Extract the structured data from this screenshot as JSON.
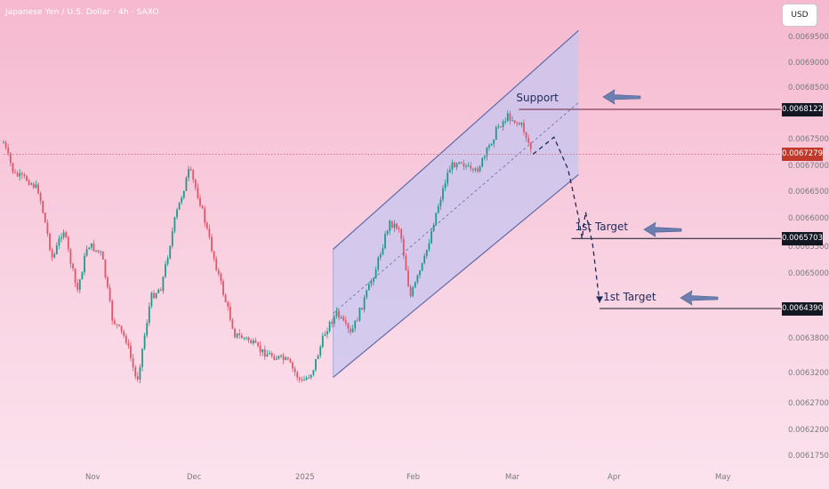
{
  "header": {
    "title": "Japanese Yen / U.S. Dollar · 4h · SAXO",
    "currency_button": "USD"
  },
  "chart_data": {
    "type": "candlestick",
    "title": "Japanese Yen / U.S. Dollar · 4h · SAXO",
    "y_ticks": [
      "0.0069500",
      "0.0069000",
      "0.0068500",
      "0.0067500",
      "0.0067000",
      "0.0066500",
      "0.0066000",
      "0.0065500",
      "0.0065000",
      "0.0063800",
      "0.0063200",
      "0.0062700",
      "0.0062200",
      "0.0061750"
    ],
    "x_ticks": [
      "Nov",
      "Dec",
      "2025",
      "Feb",
      "Mar",
      "Apr",
      "May"
    ],
    "close_path": [
      {
        "x": "Oct 14",
        "y": 0.00675
      },
      {
        "x": "Oct 17",
        "y": 0.00669
      },
      {
        "x": "Oct 21",
        "y": 0.00668
      },
      {
        "x": "Oct 24",
        "y": 0.00666
      },
      {
        "x": "Oct 28",
        "y": 0.00653
      },
      {
        "x": "Oct 31",
        "y": 0.00659
      },
      {
        "x": "Nov 4",
        "y": 0.00647
      },
      {
        "x": "Nov 7",
        "y": 0.00656
      },
      {
        "x": "Nov 11",
        "y": 0.00654
      },
      {
        "x": "Nov 14",
        "y": 0.00642
      },
      {
        "x": "Nov 18",
        "y": 0.00638
      },
      {
        "x": "Nov 21",
        "y": 0.0063
      },
      {
        "x": "Nov 25",
        "y": 0.00646
      },
      {
        "x": "Nov 28",
        "y": 0.00648
      },
      {
        "x": "Dec 2",
        "y": 0.00661
      },
      {
        "x": "Dec 6",
        "y": 0.0067
      },
      {
        "x": "Dec 9",
        "y": 0.00664
      },
      {
        "x": "Dec 12",
        "y": 0.00656
      },
      {
        "x": "Dec 16",
        "y": 0.00646
      },
      {
        "x": "Dec 19",
        "y": 0.00639
      },
      {
        "x": "Dec 23",
        "y": 0.00638
      },
      {
        "x": "Dec 26",
        "y": 0.00636
      },
      {
        "x": "Dec 30",
        "y": 0.00635
      },
      {
        "x": "Jan 3",
        "y": 0.00634
      },
      {
        "x": "Jan 7",
        "y": 0.0063
      },
      {
        "x": "Jan 10",
        "y": 0.00632
      },
      {
        "x": "Jan 14",
        "y": 0.0064
      },
      {
        "x": "Jan 17",
        "y": 0.00643
      },
      {
        "x": "Jan 21",
        "y": 0.00639
      },
      {
        "x": "Jan 24",
        "y": 0.00644
      },
      {
        "x": "Jan 28",
        "y": 0.00651
      },
      {
        "x": "Feb 1",
        "y": 0.0066
      },
      {
        "x": "Feb 4",
        "y": 0.00659
      },
      {
        "x": "Feb 7",
        "y": 0.00646
      },
      {
        "x": "Feb 11",
        "y": 0.00653
      },
      {
        "x": "Feb 14",
        "y": 0.00661
      },
      {
        "x": "Feb 18",
        "y": 0.0067
      },
      {
        "x": "Feb 21",
        "y": 0.00672
      },
      {
        "x": "Feb 25",
        "y": 0.00669
      },
      {
        "x": "Feb 28",
        "y": 0.00672
      },
      {
        "x": "Mar 4",
        "y": 0.00678
      },
      {
        "x": "Mar 7",
        "y": 0.0068
      },
      {
        "x": "Mar 11",
        "y": 0.00678
      },
      {
        "x": "Mar 14",
        "y": 0.006728
      }
    ],
    "channel": {
      "upper": [
        {
          "x": "Jan 16",
          "y": 0.00655
        },
        {
          "x": "Mar 27",
          "y": 0.00696
        }
      ],
      "lower": [
        {
          "x": "Jan 16",
          "y": 0.00631
        },
        {
          "x": "Mar 27",
          "y": 0.00669
        }
      ],
      "fill_color": "#c7c5f0",
      "line_color": "#5e6aa8"
    },
    "projection_path": [
      {
        "x": "Mar 14",
        "y": 0.006728
      },
      {
        "x": "Mar 20",
        "y": 0.00676
      },
      {
        "x": "Mar 24",
        "y": 0.0067
      },
      {
        "x": "Mar 27",
        "y": 0.00661
      },
      {
        "x": "Mar 28",
        "y": 0.00657
      },
      {
        "x": "Mar 29",
        "y": 0.00662
      },
      {
        "x": "Mar 31",
        "y": 0.00656
      },
      {
        "x": "Apr 2",
        "y": 0.00645
      }
    ],
    "levels": [
      {
        "label": "0.0068122",
        "value": 0.0068122,
        "badge_color": "#131722",
        "line_color": "#6b2340",
        "line_start": "Mar 10",
        "annotation": "Support",
        "annotation_x": "Mar 10"
      },
      {
        "label": "0.0065703",
        "value": 0.0065703,
        "badge_color": "#131722",
        "line_color": "#131722",
        "line_start": "Mar 25",
        "annotation": "1st Target",
        "annotation_x": "Mar 25"
      },
      {
        "label": "0.0064390",
        "value": 0.006439,
        "badge_color": "#131722",
        "line_color": "#131722",
        "line_start": "Apr 2",
        "annotation": "1st Target",
        "annotation_x": "Apr 2"
      },
      {
        "label": "0.0067279",
        "value": 0.0067279,
        "badge_color": "#c0392b",
        "line_color": "#d65a6a",
        "line_start": "Oct 14",
        "annotation": "",
        "annotation_x": ""
      }
    ],
    "colors": {
      "up": "#1f9a8a",
      "down": "#e0566a",
      "arrow": "#6b7fb0"
    }
  }
}
